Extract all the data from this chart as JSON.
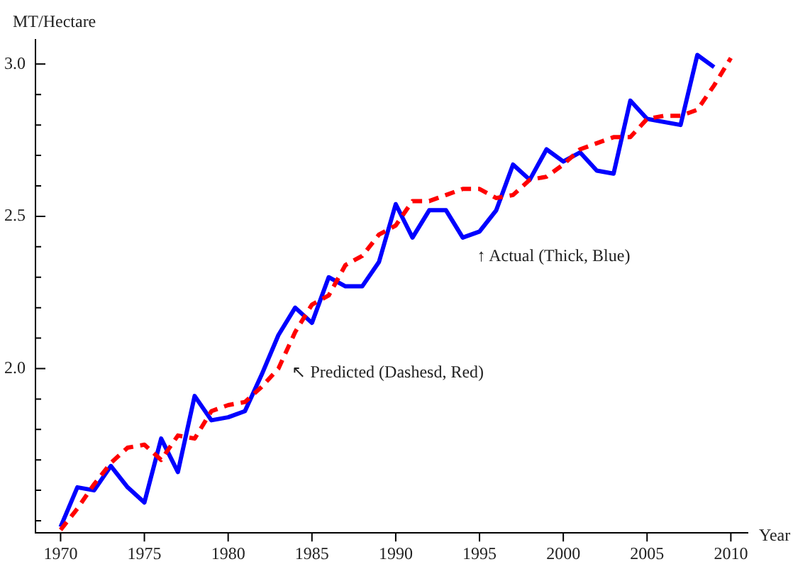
{
  "chart_data": {
    "type": "line",
    "xlabel": "Year",
    "ylabel": "MT/Hectare",
    "x": [
      1970,
      1971,
      1972,
      1973,
      1974,
      1975,
      1976,
      1977,
      1978,
      1979,
      1980,
      1981,
      1982,
      1983,
      1984,
      1985,
      1986,
      1987,
      1988,
      1989,
      1990,
      1991,
      1992,
      1993,
      1994,
      1995,
      1996,
      1997,
      1998,
      1999,
      2000,
      2001,
      2002,
      2003,
      2004,
      2005,
      2006,
      2007,
      2008,
      2009,
      2010
    ],
    "series": [
      {
        "color": "#0000ff",
        "line_style": "solid",
        "values": [
          1.48,
          1.61,
          1.6,
          1.68,
          1.61,
          1.56,
          1.77,
          1.66,
          1.91,
          1.83,
          1.84,
          1.86,
          1.98,
          2.11,
          2.2,
          2.15,
          2.3,
          2.27,
          2.27,
          2.35,
          2.54,
          2.43,
          2.52,
          2.52,
          2.43,
          2.45,
          2.52,
          2.67,
          2.62,
          2.72,
          2.68,
          2.71,
          2.65,
          2.64,
          2.88,
          2.82,
          2.81,
          2.8,
          3.03,
          2.99,
          null
        ]
      },
      {
        "color": "#ff0000",
        "line_style": "dashed",
        "values": [
          1.47,
          1.54,
          1.62,
          1.69,
          1.74,
          1.75,
          1.7,
          1.78,
          1.77,
          1.86,
          1.88,
          1.89,
          1.94,
          2.0,
          2.12,
          2.21,
          2.24,
          2.34,
          2.37,
          2.44,
          2.47,
          2.55,
          2.55,
          2.57,
          2.59,
          2.59,
          2.56,
          2.57,
          2.62,
          2.63,
          2.67,
          2.72,
          2.74,
          2.76,
          2.76,
          2.82,
          2.83,
          2.83,
          2.85,
          2.93,
          3.02
        ]
      }
    ],
    "xlim": [
      1968.5,
      2011
    ],
    "xticks": [
      1970,
      1975,
      1980,
      1985,
      1990,
      1995,
      2000,
      2005,
      2010
    ],
    "ylim": [
      1.46,
      3.08
    ],
    "yticks": [
      {
        "value": 1.5,
        "label": null
      },
      {
        "value": 1.6,
        "label": null
      },
      {
        "value": 1.7,
        "label": null
      },
      {
        "value": 1.8,
        "label": null
      },
      {
        "value": 1.9,
        "label": null
      },
      {
        "value": 2.0,
        "label": "2.0"
      },
      {
        "value": 2.1,
        "label": null
      },
      {
        "value": 2.2,
        "label": null
      },
      {
        "value": 2.3,
        "label": null
      },
      {
        "value": 2.4,
        "label": null
      },
      {
        "value": 2.5,
        "label": "2.5"
      },
      {
        "value": 2.6,
        "label": null
      },
      {
        "value": 2.7,
        "label": null
      },
      {
        "value": 2.8,
        "label": null
      },
      {
        "value": 2.9,
        "label": null
      },
      {
        "value": 3.0,
        "label": "3.0"
      }
    ],
    "annotations": [
      "↑ Actual (Thick, Blue)",
      "↖ Predicted (Dashesd, Red)"
    ],
    "grid": false,
    "legend": false,
    "marker": "none"
  }
}
